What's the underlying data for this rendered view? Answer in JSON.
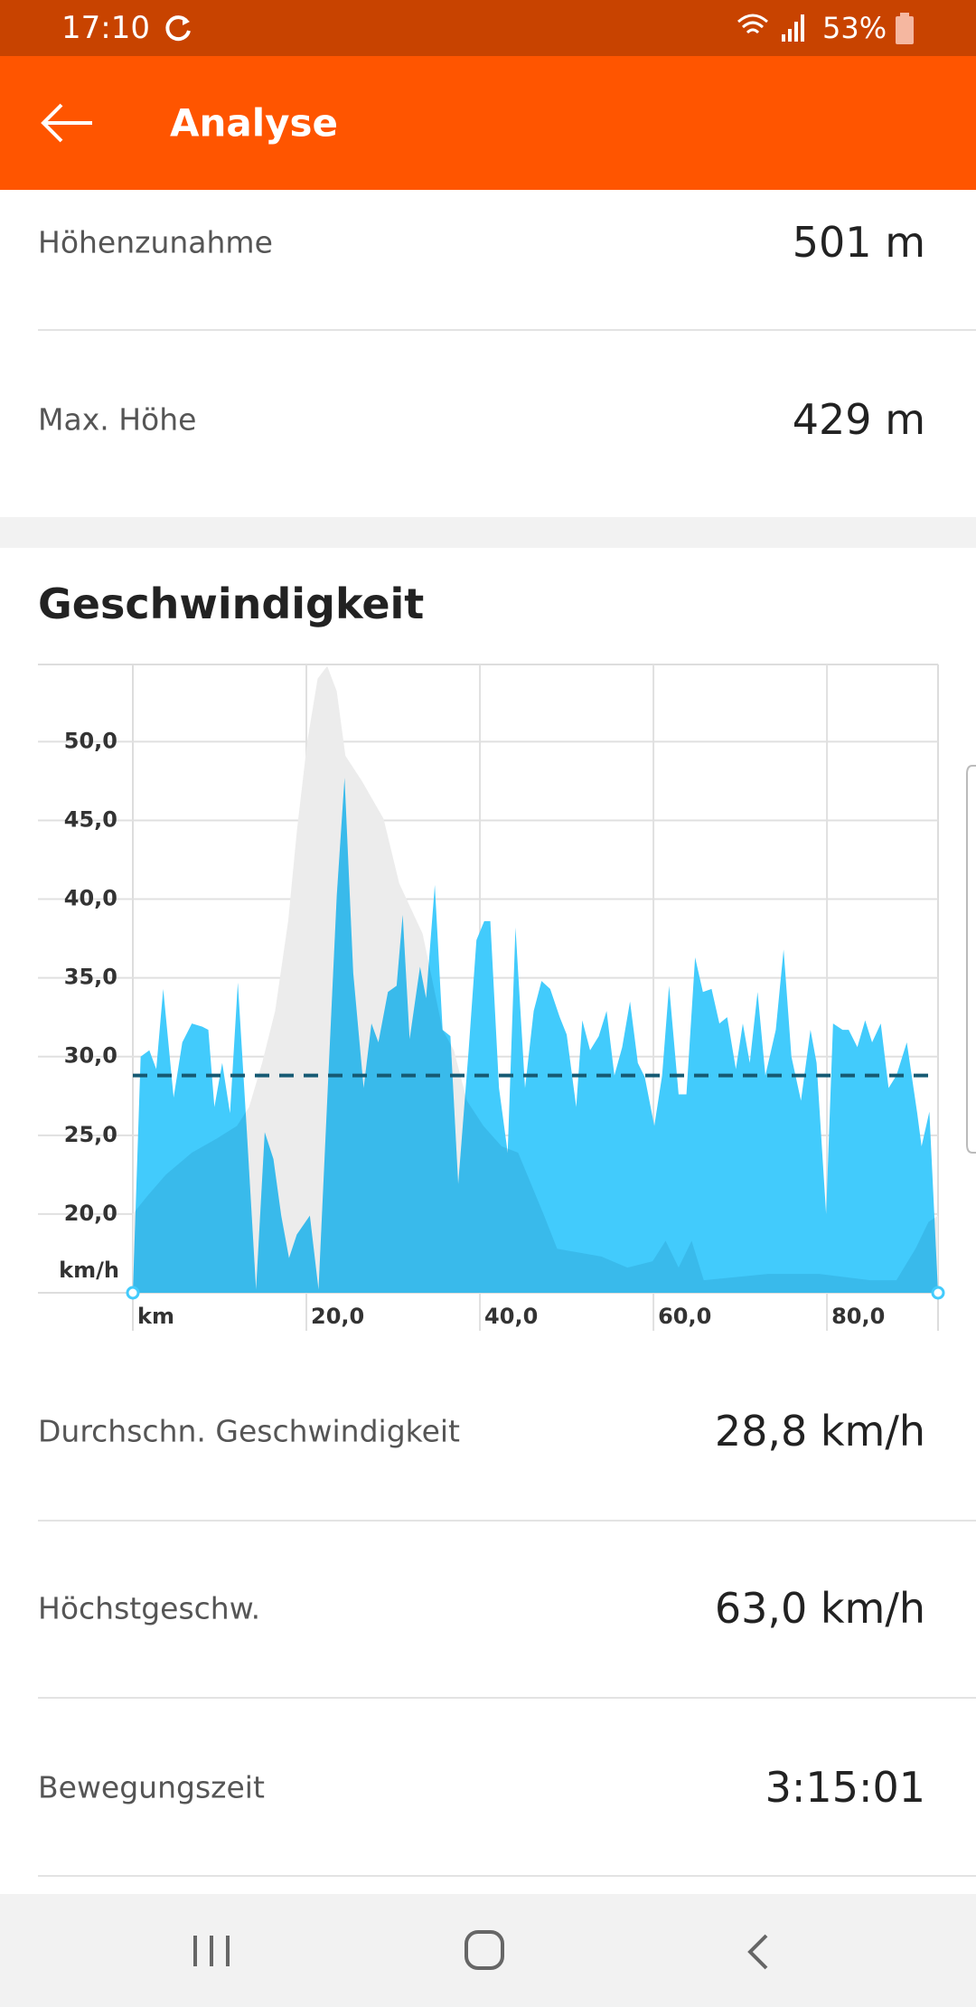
{
  "status_bar": {
    "time": "17:10",
    "battery": "53%"
  },
  "app_bar": {
    "title": "Analyse"
  },
  "elevation_stats": [
    {
      "label": "Höhenzunahme",
      "value": "501 m"
    },
    {
      "label": "Max. Höhe",
      "value": "429 m"
    }
  ],
  "section_title": "Geschwindigkeit",
  "chart_data": {
    "type": "area",
    "x_label": "km",
    "y_label": "km/h",
    "xlim": [
      0,
      92.8
    ],
    "ylim": [
      15,
      54.9
    ],
    "xticks": [
      {
        "value": 20,
        "label": "20,0"
      },
      {
        "value": 40,
        "label": "40,0"
      },
      {
        "value": 60,
        "label": "60,0"
      },
      {
        "value": 80,
        "label": "80,0"
      }
    ],
    "yticks": [
      {
        "value": 20,
        "label": "20,0"
      },
      {
        "value": 25,
        "label": "25,0"
      },
      {
        "value": 30,
        "label": "30,0"
      },
      {
        "value": 35,
        "label": "35,0"
      },
      {
        "value": 40,
        "label": "40,0"
      },
      {
        "value": 45,
        "label": "45,0"
      },
      {
        "value": 50,
        "label": "50,0"
      }
    ],
    "grid": true,
    "average": 28.8,
    "x": [
      0,
      0.9,
      1.9,
      2.7,
      3.5,
      4.7,
      5.7,
      6.8,
      8.0,
      8.7,
      9.4,
      10.3,
      11.2,
      12.1,
      13.1,
      14.2,
      15.2,
      16.2,
      17.1,
      18.0,
      18.9,
      20.4,
      21.4,
      22.4,
      23.5,
      24.4,
      25.4,
      26.6,
      27.5,
      28.3,
      29.4,
      30.4,
      31.1,
      31.9,
      33.1,
      33.8,
      34.8,
      35.7,
      36.6,
      37.5,
      38.7,
      39.6,
      40.5,
      41.2,
      42.2,
      43.2,
      44.1,
      45.2,
      46.2,
      47.1,
      48.1,
      49.2,
      50.0,
      51.1,
      51.8,
      52.7,
      53.7,
      54.6,
      55.5,
      56.4,
      57.3,
      58.2,
      59.0,
      60.1,
      61.0,
      61.8,
      62.9,
      63.8,
      64.8,
      65.7,
      66.7,
      67.6,
      68.5,
      69.5,
      70.3,
      71.1,
      72.0,
      72.9,
      74.1,
      75.0,
      75.9,
      77.0,
      78.1,
      78.8,
      79.9,
      80.7,
      81.8,
      82.5,
      83.5,
      84.4,
      85.2,
      86.2,
      87.1,
      88.0,
      89.2,
      90.4,
      90.9,
      91.8,
      92.8
    ],
    "series": [
      {
        "color": "#42cbfc",
        "values": [
          15.0,
          30.0,
          30.4,
          29.2,
          34.3,
          27.4,
          30.9,
          32.1,
          31.9,
          31.7,
          26.8,
          29.6,
          26.4,
          34.7,
          25.6,
          15.2,
          25.2,
          23.5,
          19.9,
          17.2,
          18.7,
          19.9,
          15.2,
          27.2,
          40.2,
          47.7,
          35.3,
          28.0,
          32.1,
          30.9,
          34.1,
          34.5,
          39.0,
          31.1,
          35.7,
          33.7,
          40.9,
          31.7,
          31.3,
          21.9,
          30.4,
          37.4,
          38.6,
          38.6,
          28.0,
          23.9,
          38.2,
          28.0,
          32.9,
          34.8,
          34.3,
          32.5,
          31.4,
          26.8,
          32.3,
          30.4,
          31.3,
          32.9,
          28.8,
          30.6,
          33.5,
          29.6,
          28.7,
          25.6,
          28.8,
          34.5,
          27.6,
          27.6,
          36.3,
          34.1,
          34.3,
          32.1,
          32.5,
          29.2,
          32.1,
          29.6,
          34.1,
          28.8,
          31.7,
          36.8,
          30.0,
          27.2,
          31.7,
          29.6,
          20.0,
          32.1,
          31.7,
          31.7,
          30.6,
          32.3,
          30.9,
          32.1,
          28.0,
          28.8,
          30.9,
          26.4,
          24.3,
          26.5,
          15.0
        ]
      },
      {
        "color": "#ececec",
        "x": [
          0,
          1.6,
          3.8,
          6.8,
          9.7,
          12.0,
          13.4,
          14.9,
          16.4,
          17.9,
          18.9,
          20.1,
          21.3,
          22.4,
          23.5,
          24.5,
          26.4,
          28.9,
          30.7,
          33.4,
          35.7,
          37.0,
          38.5,
          40.4,
          42.5,
          44.4,
          45.9,
          47.4,
          48.9,
          54.0,
          57.0,
          59.9,
          61.4,
          62.9,
          64.4,
          65.8,
          73.2,
          79.1,
          85.0,
          88.0,
          90.2,
          91.7,
          92.8
        ],
        "values": [
          20.0,
          21.1,
          22.5,
          23.9,
          24.8,
          25.6,
          26.8,
          29.6,
          32.9,
          38.6,
          44.3,
          50.0,
          54.0,
          54.8,
          53.2,
          49.1,
          47.5,
          45.1,
          41.0,
          37.8,
          31.7,
          30.4,
          27.2,
          25.6,
          24.3,
          23.9,
          21.9,
          19.9,
          17.8,
          17.3,
          16.6,
          17.0,
          18.3,
          16.6,
          18.3,
          15.8,
          16.2,
          16.2,
          15.8,
          15.8,
          17.8,
          19.5,
          19.9
        ]
      }
    ]
  },
  "speed_stats": [
    {
      "label": "Durchschn. Geschwindigkeit",
      "value": "28,8 km/h"
    },
    {
      "label": "Höchstgeschw.",
      "value": "63,0 km/h"
    },
    {
      "label": "Bewegungszeit",
      "value": "3:15:01"
    }
  ]
}
